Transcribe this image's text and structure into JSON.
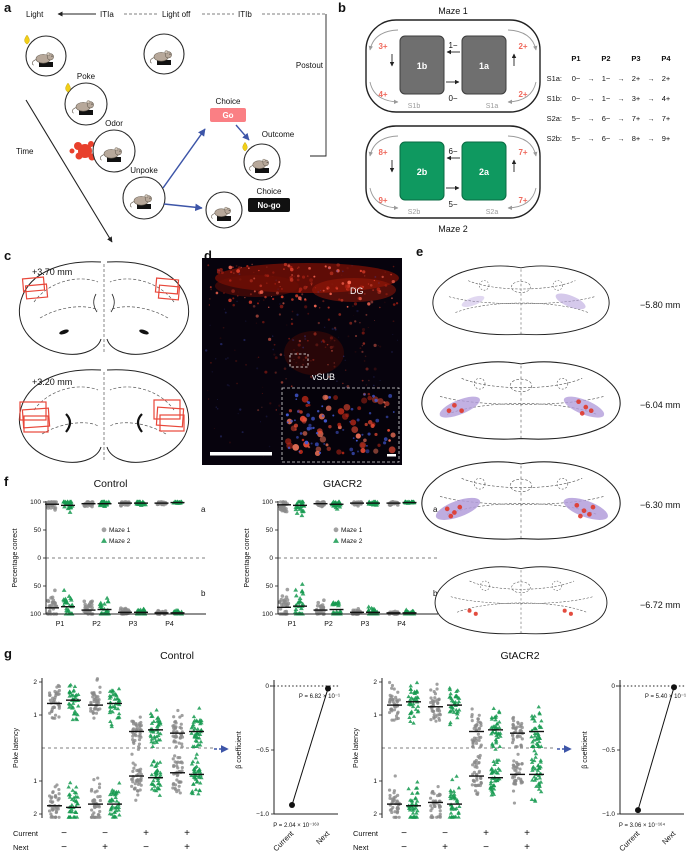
{
  "panels": {
    "a": "a",
    "b": "b",
    "c": "c",
    "d": "d",
    "e": "e",
    "f": "f",
    "g": "g"
  },
  "panel_a": {
    "light": "Light",
    "itia": "ITIa",
    "light_off": "Light off",
    "itib": "ITIb",
    "postout": "Postout",
    "poke": "Poke",
    "odor": "Odor",
    "unpoke": "Unpoke",
    "time": "Time",
    "choice": "Choice",
    "go": "Go",
    "no_go": "No-go",
    "outcome": "Outcome",
    "colors": {
      "go_box": "#fa7f84",
      "no_go_box": "#111111",
      "odor": "#e8402c",
      "reward_drop": "#f2cf16",
      "arrow_blue": "#3d55a8"
    }
  },
  "panel_b": {
    "maze1_title": "Maze 1",
    "maze2_title": "Maze 2",
    "maze1": {
      "box_left": "1b",
      "box_right": "1a",
      "box_color": "#6f6f6f",
      "left_top": "3+",
      "left_bottom": "4+",
      "mid_top": "1−",
      "mid_bottom": "0−",
      "right_top": "2+",
      "right_bottom": "2+",
      "seq_left": "S1b",
      "seq_right": "S1a"
    },
    "maze2": {
      "box_left": "2b",
      "box_right": "2a",
      "box_color": "#0f9960",
      "left_top": "8+",
      "left_bottom": "9+",
      "mid_top": "6−",
      "mid_bottom": "5−",
      "right_top": "7+",
      "right_bottom": "7+",
      "seq_left": "S2b",
      "seq_right": "S2a"
    },
    "table": {
      "headers": [
        "P1",
        "P2",
        "P3",
        "P4"
      ],
      "rows": [
        {
          "label": "S1a:",
          "muted": true,
          "cells": [
            "0−",
            "1−",
            "2+",
            "2+"
          ]
        },
        {
          "label": "S1b:",
          "muted": false,
          "cells": [
            "0−",
            "1−",
            "3+",
            "4+"
          ]
        },
        {
          "label": "S2a:",
          "muted": true,
          "cells": [
            "5−",
            "6−",
            "7+",
            "7+"
          ]
        },
        {
          "label": "S2b:",
          "muted": false,
          "cells": [
            "5−",
            "6−",
            "8+",
            "9+"
          ]
        }
      ],
      "pos_color": "#e8584a",
      "pos_color_muted": "#f4988b",
      "neg_color": "#222222",
      "neg_color_muted": "#9a9a9a"
    }
  },
  "panel_c": {
    "sections": [
      {
        "label": "+3.70 mm"
      },
      {
        "label": "+3.20 mm"
      }
    ],
    "box_color": "#e8473a"
  },
  "panel_d": {
    "dg": "DG",
    "vsub": "vSUB"
  },
  "panel_e": {
    "sections": [
      {
        "label": "−5.80 mm"
      },
      {
        "label": "−6.04 mm"
      },
      {
        "label": "−6.30 mm"
      },
      {
        "label": "−6.72 mm"
      }
    ]
  },
  "panel_g": {
    "titles": {
      "control": "Control",
      "gtacr2": "GtACR2"
    }
  },
  "chart_data": [
    {
      "id": "f_control",
      "type": "scatter",
      "title": "Control",
      "ylabel": "Percentage correct",
      "categories": [
        "P1",
        "P2",
        "P3",
        "P4"
      ],
      "subpanel_labels": [
        "a",
        "b"
      ],
      "ylim": [
        0,
        100
      ],
      "yticks_top": [
        {
          "v": 100,
          "label": "100"
        },
        {
          "v": 50,
          "label": "50"
        },
        {
          "v": 0,
          "label": "0"
        }
      ],
      "yticks_bottom": [
        {
          "v": 50,
          "label": "50"
        },
        {
          "v": 100,
          "label": "100"
        }
      ],
      "legend": [
        {
          "label": "Maze 1",
          "marker": "circle",
          "color": "#8a8a8a"
        },
        {
          "label": "Maze 2",
          "marker": "triangle",
          "color": "#169a50"
        }
      ],
      "n_per_cluster": 26,
      "series": [
        {
          "name": "Maze 1",
          "marker": "circle",
          "color": "#8a8a8a",
          "top_means": [
            96,
            97,
            98,
            98
          ],
          "top_sd": [
            5,
            3,
            2,
            1.5
          ],
          "bottom_means": [
            89,
            93,
            97,
            98
          ],
          "bottom_sd": [
            13,
            8,
            3,
            2
          ]
        },
        {
          "name": "Maze 2",
          "marker": "triangle",
          "color": "#169a50",
          "top_means": [
            94,
            97,
            98,
            99
          ],
          "top_sd": [
            7,
            3,
            2,
            1
          ],
          "bottom_means": [
            87,
            92,
            97,
            98
          ],
          "bottom_sd": [
            14,
            9,
            3,
            2
          ]
        }
      ]
    },
    {
      "id": "f_gtacr2",
      "type": "scatter",
      "title": "GtACR2",
      "ylabel": "Percentage correct",
      "categories": [
        "P1",
        "P2",
        "P3",
        "P4"
      ],
      "subpanel_labels": [
        "a",
        "b"
      ],
      "ylim": [
        0,
        100
      ],
      "yticks_top": [
        {
          "v": 100,
          "label": "100"
        },
        {
          "v": 50,
          "label": "50"
        },
        {
          "v": 0,
          "label": "0"
        }
      ],
      "yticks_bottom": [
        {
          "v": 50,
          "label": "50"
        },
        {
          "v": 100,
          "label": "100"
        }
      ],
      "legend": [
        {
          "label": "Maze 1",
          "marker": "circle",
          "color": "#8a8a8a"
        },
        {
          "label": "Maze 2",
          "marker": "triangle",
          "color": "#169a50"
        }
      ],
      "n_per_cluster": 26,
      "series": [
        {
          "name": "Maze 1",
          "marker": "circle",
          "color": "#8a8a8a",
          "top_means": [
            95,
            97,
            98,
            98
          ],
          "top_sd": [
            6,
            3,
            2,
            2
          ],
          "bottom_means": [
            88,
            93,
            97,
            98
          ],
          "bottom_sd": [
            14,
            8,
            3,
            2
          ]
        },
        {
          "name": "Maze 2",
          "marker": "triangle",
          "color": "#169a50",
          "top_means": [
            94,
            96,
            98,
            99
          ],
          "top_sd": [
            8,
            4,
            2,
            1
          ],
          "bottom_means": [
            86,
            92,
            97,
            98
          ],
          "bottom_sd": [
            15,
            9,
            4,
            2
          ]
        }
      ]
    },
    {
      "id": "g_latency_control",
      "type": "scatter",
      "ylabel": "Poke latency",
      "ylim": [
        -2.35,
        2.35
      ],
      "condition_rows": [
        {
          "label": "Current",
          "signs": [
            "−",
            "−",
            "+",
            "+"
          ]
        },
        {
          "label": "Next",
          "signs": [
            "−",
            "+",
            "−",
            "+"
          ]
        }
      ],
      "yticks": [
        {
          "v": 2,
          "label": "2"
        },
        {
          "v": 1,
          "label": "1"
        },
        {
          "v": -1,
          "label": "1"
        },
        {
          "v": -2,
          "label": "2"
        }
      ],
      "n_per_cluster": 40,
      "series": [
        {
          "name": "Maze 1",
          "marker": "circle",
          "color": "#8a8a8a",
          "top_means": [
            1.35,
            1.3,
            0.5,
            0.45
          ],
          "top_sd": 0.3,
          "bottom_means": [
            -1.75,
            -1.7,
            -0.85,
            -0.75
          ],
          "bottom_sd": 0.32
        },
        {
          "name": "Maze 2",
          "marker": "triangle",
          "color": "#169a50",
          "top_means": [
            1.45,
            1.35,
            0.55,
            0.5
          ],
          "top_sd": 0.3,
          "bottom_means": [
            -1.8,
            -1.7,
            -0.9,
            -0.8
          ],
          "bottom_sd": 0.32
        }
      ]
    },
    {
      "id": "g_beta_control",
      "type": "line",
      "ylabel": "β coefficient",
      "ylim": [
        -1,
        0
      ],
      "categories": [
        "Current",
        "Next"
      ],
      "values": [
        -0.93,
        -0.02
      ],
      "yticks": [
        {
          "v": 0,
          "label": "0"
        },
        {
          "v": -0.5,
          "label": "−0.5"
        },
        {
          "v": -1,
          "label": "−1.0"
        }
      ],
      "p_next": "P = 6.82 × 10⁻¹",
      "p_current": "P = 2.04 × 10⁻¹⁶³"
    },
    {
      "id": "g_latency_gtacr2",
      "type": "scatter",
      "ylabel": "Poke latency",
      "ylim": [
        -2.35,
        2.35
      ],
      "condition_rows": [
        {
          "label": "Current",
          "signs": [
            "−",
            "−",
            "+",
            "+"
          ]
        },
        {
          "label": "Next",
          "signs": [
            "−",
            "+",
            "−",
            "+"
          ]
        }
      ],
      "yticks": [
        {
          "v": 2,
          "label": "2"
        },
        {
          "v": 1,
          "label": "1"
        },
        {
          "v": -1,
          "label": "1"
        },
        {
          "v": -2,
          "label": "2"
        }
      ],
      "n_per_cluster": 40,
      "series": [
        {
          "name": "Maze 1",
          "marker": "circle",
          "color": "#8a8a8a",
          "top_means": [
            1.3,
            1.25,
            0.5,
            0.45
          ],
          "top_sd": 0.3,
          "bottom_means": [
            -1.7,
            -1.65,
            -0.85,
            -0.8
          ],
          "bottom_sd": 0.32
        },
        {
          "name": "Maze 2",
          "marker": "triangle",
          "color": "#169a50",
          "top_means": [
            1.4,
            1.3,
            0.55,
            0.5
          ],
          "top_sd": 0.3,
          "bottom_means": [
            -1.75,
            -1.7,
            -0.9,
            -0.8
          ],
          "bottom_sd": 0.32
        }
      ]
    },
    {
      "id": "g_beta_gtacr2",
      "type": "line",
      "ylabel": "β coefficient",
      "ylim": [
        -1,
        0
      ],
      "categories": [
        "Current",
        "Next"
      ],
      "values": [
        -0.97,
        -0.01
      ],
      "yticks": [
        {
          "v": 0,
          "label": "0"
        },
        {
          "v": -0.5,
          "label": "−0.5"
        },
        {
          "v": -1,
          "label": "−1.0"
        }
      ],
      "p_next": "P = 5.40 × 10⁻¹",
      "p_current": "P = 3.06 × 10⁻¹⁶⁴"
    }
  ]
}
